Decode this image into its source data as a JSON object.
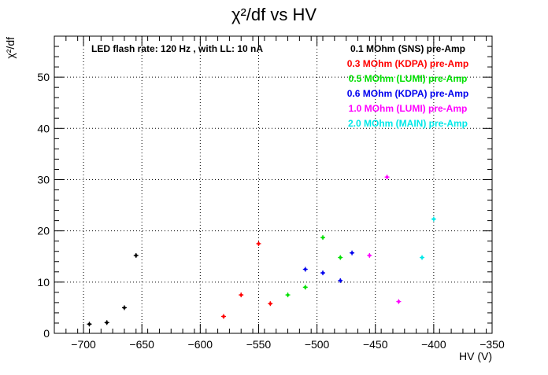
{
  "chart_data": {
    "type": "scatter",
    "title": "χ²/df vs HV",
    "xlabel": "HV (V)",
    "ylabel": "χ²/df",
    "xlim": [
      -725,
      -350
    ],
    "ylim": [
      0,
      58
    ],
    "xticks": [
      -700,
      -650,
      -600,
      -550,
      -500,
      -450,
      -400,
      -350
    ],
    "yticks": [
      0,
      10,
      20,
      30,
      40,
      50
    ],
    "grid": true,
    "legend_position": "top-right",
    "annotation": "LED flash rate: 120 Hz , with LL: 10 nA",
    "series": [
      {
        "name": "0.1 MOhm (SNS) pre-Amp",
        "color": "#000000",
        "points": [
          [
            -695,
            1.8
          ],
          [
            -680,
            2.1
          ],
          [
            -665,
            5.0
          ],
          [
            -655,
            15.2
          ]
        ]
      },
      {
        "name": "0.3 MOhm (KDPA) pre-Amp",
        "color": "#ff0000",
        "points": [
          [
            -580,
            3.3
          ],
          [
            -565,
            7.5
          ],
          [
            -550,
            17.5
          ],
          [
            -540,
            5.8
          ]
        ]
      },
      {
        "name": "0.5 MOhm (LUMI) pre-Amp",
        "color": "#00e000",
        "points": [
          [
            -525,
            7.5
          ],
          [
            -510,
            9.0
          ],
          [
            -495,
            18.7
          ],
          [
            -480,
            14.8
          ]
        ]
      },
      {
        "name": "0.6 MOhm (KDPA) pre-Amp",
        "color": "#0000ee",
        "points": [
          [
            -510,
            12.5
          ],
          [
            -495,
            11.8
          ],
          [
            -480,
            10.3
          ],
          [
            -470,
            15.7
          ]
        ]
      },
      {
        "name": "1.0 MOhm (LUMI) pre-Amp",
        "color": "#ff00ff",
        "points": [
          [
            -455,
            15.2
          ],
          [
            -440,
            30.5
          ],
          [
            -430,
            6.2
          ]
        ]
      },
      {
        "name": "2.0 MOhm (MAIN) pre-Amp",
        "color": "#00e8e8",
        "points": [
          [
            -410,
            14.8
          ],
          [
            -400,
            22.3
          ]
        ]
      }
    ]
  }
}
